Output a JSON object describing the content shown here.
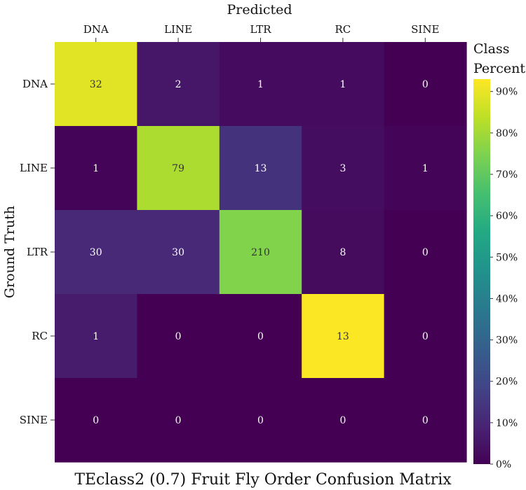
{
  "chart_data": {
    "type": "heatmap",
    "title": "TEclass2 (0.7) Fruit Fly Order Confusion Matrix",
    "xlabel": "Predicted",
    "ylabel": "Ground Truth",
    "x_categories": [
      "DNA",
      "LINE",
      "LTR",
      "RC",
      "SINE"
    ],
    "y_categories": [
      "DNA",
      "LINE",
      "LTR",
      "RC",
      "SINE"
    ],
    "counts": [
      [
        32,
        2,
        1,
        1,
        0
      ],
      [
        1,
        79,
        13,
        3,
        1
      ],
      [
        30,
        30,
        210,
        8,
        0
      ],
      [
        1,
        0,
        0,
        13,
        0
      ],
      [
        0,
        0,
        0,
        0,
        0
      ]
    ],
    "colorbar": {
      "title": [
        "Class",
        "Percent"
      ],
      "ticks": [
        "0%",
        "10%",
        "20%",
        "30%",
        "40%",
        "50%",
        "60%",
        "70%",
        "80%",
        "90%"
      ],
      "range": [
        0,
        93
      ]
    },
    "colormap": "viridis"
  }
}
